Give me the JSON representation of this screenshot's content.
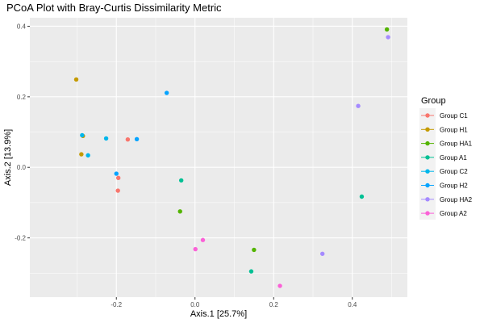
{
  "chart_data": {
    "type": "scatter",
    "title": "PCoA Plot with Bray-Curtis Dissimilarity Metric",
    "xlabel": "Axis.1   [25.7%]",
    "ylabel": "Axis.2   [13.9%]",
    "xlim": [
      -0.42,
      0.54
    ],
    "ylim": [
      -0.368,
      0.424
    ],
    "x_ticks": [
      -0.2,
      0.0,
      0.2,
      0.4
    ],
    "x_tick_labels": [
      "-0.2",
      "0.0",
      "0.2",
      "0.4"
    ],
    "y_ticks": [
      -0.2,
      0.0,
      0.2,
      0.4
    ],
    "y_tick_labels": [
      "-0.2",
      "0.0",
      "0.2",
      "0.4"
    ],
    "grid": true,
    "legend": {
      "title": "Group",
      "position": "right"
    },
    "series": [
      {
        "name": "Group C1",
        "color": "#F8766D",
        "points": [
          [
            -0.171,
            0.079
          ],
          [
            -0.195,
            -0.03
          ],
          [
            -0.196,
            -0.066
          ]
        ]
      },
      {
        "name": "Group H1",
        "color": "#C49A00",
        "points": [
          [
            -0.302,
            0.249
          ],
          [
            -0.285,
            0.089
          ],
          [
            -0.289,
            0.037
          ]
        ]
      },
      {
        "name": "Group HA1",
        "color": "#53B400",
        "points": [
          [
            0.488,
            0.391
          ],
          [
            -0.038,
            -0.125
          ],
          [
            0.15,
            -0.234
          ]
        ]
      },
      {
        "name": "Group A1",
        "color": "#00C094",
        "points": [
          [
            -0.035,
            -0.037
          ],
          [
            0.424,
            -0.083
          ],
          [
            0.143,
            -0.295
          ]
        ]
      },
      {
        "name": "Group C2",
        "color": "#00B6EB",
        "points": [
          [
            -0.226,
            0.082
          ],
          [
            -0.272,
            0.034
          ],
          [
            -0.287,
            0.091
          ]
        ]
      },
      {
        "name": "Group H2",
        "color": "#06A4FF",
        "points": [
          [
            -0.072,
            0.211
          ],
          [
            -0.148,
            0.08
          ],
          [
            -0.2,
            -0.018
          ]
        ]
      },
      {
        "name": "Group HA2",
        "color": "#A58AFF",
        "points": [
          [
            0.491,
            0.369
          ],
          [
            0.415,
            0.174
          ],
          [
            0.324,
            -0.245
          ]
        ]
      },
      {
        "name": "Group A2",
        "color": "#FB61D7",
        "points": [
          [
            0.02,
            -0.206
          ],
          [
            0.001,
            -0.232
          ],
          [
            0.216,
            -0.336
          ]
        ]
      }
    ]
  }
}
